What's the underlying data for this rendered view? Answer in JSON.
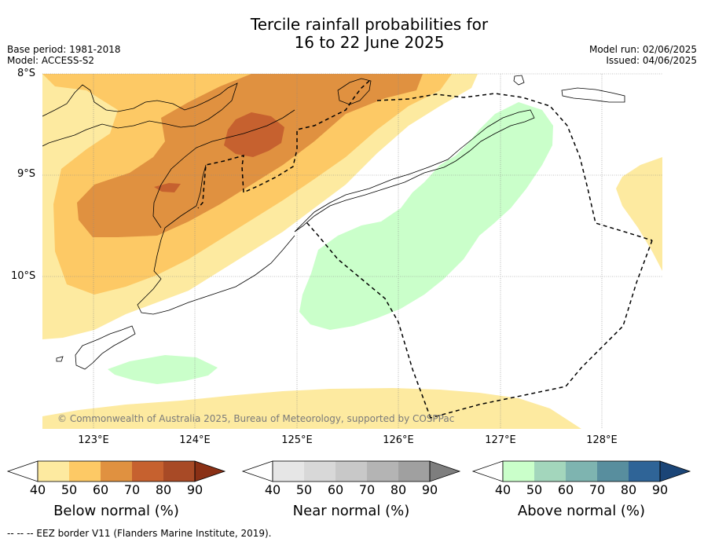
{
  "title_line1": "Tercile rainfall probabilities for",
  "title_line2": "16 to 22 June 2025",
  "base_period": "Base period: 1981-2018",
  "model": "Model: ACCESS-S2",
  "model_run": "Model run: 02/06/2025",
  "issued": "Issued: 04/06/2025",
  "lat_labels": [
    "8°S",
    "9°S",
    "10°S"
  ],
  "lon_labels": [
    "123°E",
    "124°E",
    "125°E",
    "126°E",
    "127°E",
    "128°E"
  ],
  "copyright": "© Commonwealth of Australia 2025, Bureau of Meteorology, supported by COSPPac",
  "colorbars": [
    {
      "title": "Below normal (%)",
      "ticks": [
        "40",
        "50",
        "60",
        "70",
        "80",
        "90"
      ],
      "colors": [
        "#ffffff",
        "#fdeaa0",
        "#fdc965",
        "#e09140",
        "#c6612f",
        "#a84a26",
        "#8a3015"
      ]
    },
    {
      "title": "Near normal (%)",
      "ticks": [
        "40",
        "50",
        "60",
        "70",
        "80",
        "90"
      ],
      "colors": [
        "#ffffff",
        "#e6e6e6",
        "#d8d8d8",
        "#c8c8c8",
        "#b4b4b4",
        "#a0a0a0",
        "#7e7e7e"
      ]
    },
    {
      "title": "Above normal (%)",
      "ticks": [
        "40",
        "50",
        "60",
        "70",
        "80",
        "90"
      ],
      "colors": [
        "#ffffff",
        "#caffca",
        "#a3d6bc",
        "#7eb4b0",
        "#588e9e",
        "#2f6497",
        "#1b4577"
      ]
    }
  ],
  "footnote": "-- -- -- EEZ border V11 (Flanders Marine Institute, 2019)."
}
